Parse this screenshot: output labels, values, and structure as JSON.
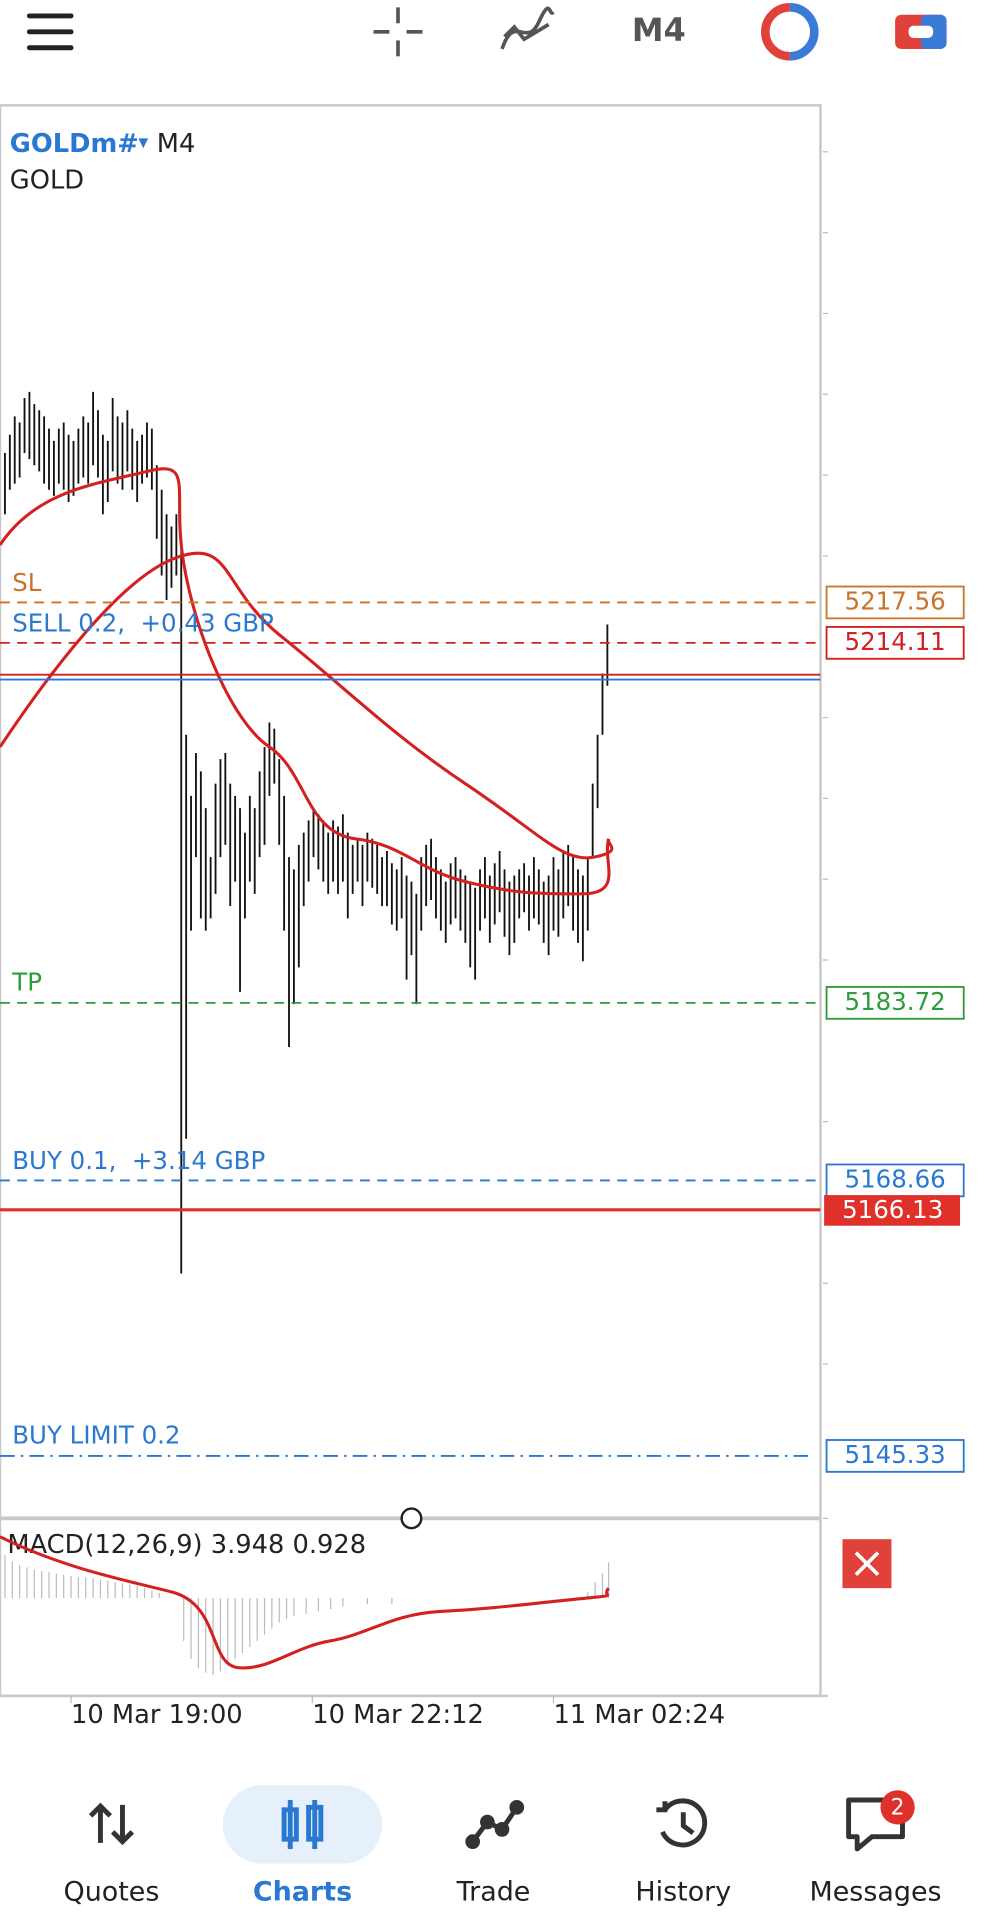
{
  "toolbar": {
    "timeframe": "M4"
  },
  "chart": {
    "symbol": "GOLDm#",
    "timeframe": "M4",
    "description": "GOLD",
    "orders": [
      {
        "label": "SL",
        "price": 5217.56
      },
      {
        "label": "SELL 0.2,  +0.43 GBP",
        "price": 5214.11
      },
      {
        "label": "TP",
        "price": 5183.72
      },
      {
        "label": "BUY 0.1,  +3.14 GBP",
        "price": 5168.66
      },
      {
        "label": "BUY LIMIT 0.2",
        "price": 5145.33
      }
    ],
    "bid": 5166.13,
    "indicator": "MACD(12,26,9) 3.948 0.928",
    "time_labels": [
      "10 Mar 19:00",
      "10 Mar 22:12",
      "11 Mar 02:24"
    ]
  },
  "nav": {
    "items": [
      "Quotes",
      "Charts",
      "Trade",
      "History",
      "Messages"
    ],
    "badge": 2
  }
}
